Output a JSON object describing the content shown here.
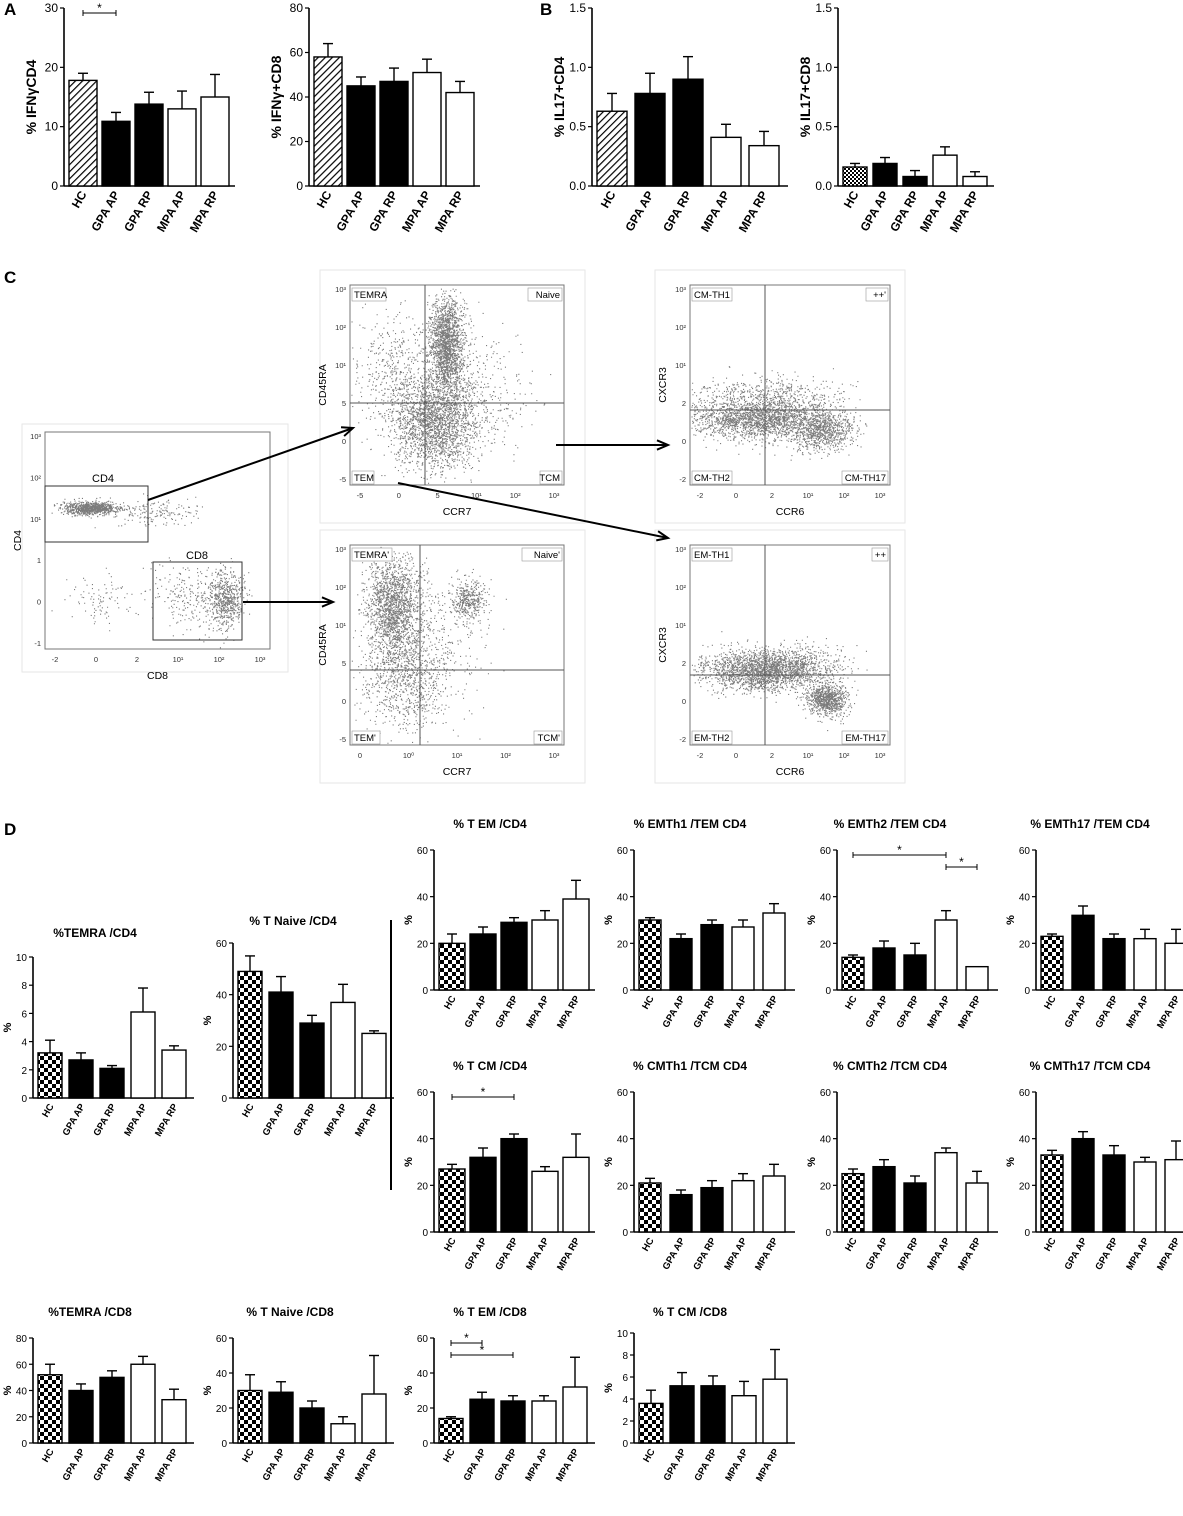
{
  "panels": {
    "A": "A",
    "B": "B",
    "C": "C",
    "D": "D"
  },
  "groups": [
    "HC",
    "GPA AP",
    "GPA RP",
    "MPA AP",
    "MPA RP"
  ],
  "chart_data": [
    {
      "type": "bar",
      "panel": "A",
      "ylabel": "% IFNγCD4",
      "ylim": [
        0,
        30
      ],
      "yticks": [
        0,
        10,
        20,
        30
      ],
      "values": [
        17.8,
        10.9,
        13.8,
        13.0,
        15.0
      ],
      "errors": [
        1.2,
        1.5,
        2.0,
        3.0,
        3.8
      ],
      "styles": [
        "hatch",
        "black",
        "black",
        "white",
        "white"
      ],
      "sig": [
        {
          "from": 0,
          "to": 1,
          "label": "*"
        }
      ]
    },
    {
      "type": "bar",
      "ylabel": "% IFNγ+CD8",
      "ylim": [
        0,
        80
      ],
      "yticks": [
        0,
        20,
        40,
        60,
        80
      ],
      "values": [
        58,
        45,
        47,
        51,
        42
      ],
      "errors": [
        6,
        4,
        6,
        6,
        5
      ],
      "styles": [
        "hatch",
        "black",
        "black",
        "white",
        "white"
      ],
      "sig": []
    },
    {
      "type": "bar",
      "panel": "B",
      "ylabel": "% IL17+CD4",
      "ylim": [
        0,
        1.5
      ],
      "yticks": [
        0.0,
        0.5,
        1.0,
        1.5
      ],
      "values": [
        0.63,
        0.78,
        0.9,
        0.41,
        0.34
      ],
      "errors": [
        0.15,
        0.17,
        0.19,
        0.11,
        0.12
      ],
      "styles": [
        "hatch",
        "black",
        "black",
        "white",
        "white"
      ],
      "sig": []
    },
    {
      "type": "bar",
      "ylabel": "% IL17+CD8",
      "ylim": [
        0,
        1.5
      ],
      "yticks": [
        0.0,
        0.5,
        1.0,
        1.5
      ],
      "values": [
        0.16,
        0.19,
        0.08,
        0.26,
        0.08
      ],
      "errors": [
        0.03,
        0.05,
        0.05,
        0.07,
        0.04
      ],
      "styles": [
        "check",
        "black",
        "black",
        "white",
        "white"
      ],
      "sig": []
    },
    {
      "type": "bar",
      "panel": "D",
      "title": "%TEMRA /CD4",
      "ylabel": "%",
      "ylim": [
        0,
        10
      ],
      "yticks": [
        0,
        2,
        4,
        6,
        8,
        10
      ],
      "values": [
        3.2,
        2.7,
        2.1,
        6.1,
        3.4
      ],
      "errors": [
        0.9,
        0.5,
        0.2,
        1.7,
        0.3
      ],
      "styles": [
        "check",
        "black",
        "black",
        "white",
        "white"
      ],
      "sig": []
    },
    {
      "type": "bar",
      "title": "% T Naive /CD4",
      "ylabel": "%",
      "ylim": [
        0,
        60
      ],
      "yticks": [
        0,
        20,
        40,
        60
      ],
      "values": [
        49,
        41,
        29,
        37,
        25
      ],
      "errors": [
        6,
        6,
        3,
        7,
        1
      ],
      "styles": [
        "check",
        "black",
        "black",
        "white",
        "white"
      ],
      "sig": []
    },
    {
      "type": "bar",
      "title": "% T EM /CD4",
      "ylabel": "%",
      "ylim": [
        0,
        60
      ],
      "yticks": [
        0,
        20,
        40,
        60
      ],
      "values": [
        20,
        24,
        29,
        30,
        39
      ],
      "errors": [
        4,
        3,
        2,
        4,
        8
      ],
      "styles": [
        "check",
        "black",
        "black",
        "white",
        "white"
      ],
      "sig": []
    },
    {
      "type": "bar",
      "title": "% EMTh1 /TEM CD4",
      "ylabel": "%",
      "ylim": [
        0,
        60
      ],
      "yticks": [
        0,
        20,
        40,
        60
      ],
      "values": [
        30,
        22,
        28,
        27,
        33
      ],
      "errors": [
        1,
        2,
        2,
        3,
        4
      ],
      "styles": [
        "check",
        "black",
        "black",
        "white",
        "white"
      ],
      "sig": []
    },
    {
      "type": "bar",
      "title": "% EMTh2 /TEM CD4",
      "ylabel": "%",
      "ylim": [
        0,
        60
      ],
      "yticks": [
        0,
        20,
        40,
        60
      ],
      "values": [
        14,
        18,
        15,
        30,
        10
      ],
      "errors": [
        1,
        3,
        5,
        4,
        0
      ],
      "styles": [
        "check",
        "black",
        "black",
        "white",
        "white"
      ],
      "sig": [
        {
          "from": 0,
          "to": 3,
          "label": "*"
        },
        {
          "from": 3,
          "to": 4,
          "label": "*"
        }
      ]
    },
    {
      "type": "bar",
      "title": "% EMTh17 /TEM CD4",
      "ylabel": "%",
      "ylim": [
        0,
        60
      ],
      "yticks": [
        0,
        20,
        40,
        60
      ],
      "values": [
        23,
        32,
        22,
        22,
        20
      ],
      "errors": [
        1,
        4,
        2,
        4,
        6
      ],
      "styles": [
        "check",
        "black",
        "black",
        "white",
        "white"
      ],
      "sig": []
    },
    {
      "type": "bar",
      "title": "% T CM /CD4",
      "ylabel": "%",
      "ylim": [
        0,
        60
      ],
      "yticks": [
        0,
        20,
        40,
        60
      ],
      "values": [
        27,
        32,
        40,
        26,
        32
      ],
      "errors": [
        2,
        4,
        2,
        2,
        10
      ],
      "styles": [
        "check",
        "black",
        "black",
        "white",
        "white"
      ],
      "sig": [
        {
          "from": 0,
          "to": 2,
          "label": "*"
        }
      ]
    },
    {
      "type": "bar",
      "title": "% CMTh1 /TCM CD4",
      "ylabel": "%",
      "ylim": [
        0,
        60
      ],
      "yticks": [
        0,
        20,
        40,
        60
      ],
      "values": [
        21,
        16,
        19,
        22,
        24
      ],
      "errors": [
        2,
        2,
        3,
        3,
        5
      ],
      "styles": [
        "check",
        "black",
        "black",
        "white",
        "white"
      ],
      "sig": []
    },
    {
      "type": "bar",
      "title": "% CMTh2 /TCM CD4",
      "ylabel": "%",
      "ylim": [
        0,
        60
      ],
      "yticks": [
        0,
        20,
        40,
        60
      ],
      "values": [
        25,
        28,
        21,
        34,
        21
      ],
      "errors": [
        2,
        3,
        3,
        2,
        5
      ],
      "styles": [
        "check",
        "black",
        "black",
        "white",
        "white"
      ],
      "sig": []
    },
    {
      "type": "bar",
      "title": "% CMTh17 /TCM CD4",
      "ylabel": "%",
      "ylim": [
        0,
        60
      ],
      "yticks": [
        0,
        20,
        40,
        60
      ],
      "values": [
        33,
        40,
        33,
        30,
        31
      ],
      "errors": [
        2,
        3,
        4,
        2,
        8
      ],
      "styles": [
        "check",
        "black",
        "black",
        "white",
        "white"
      ],
      "sig": []
    },
    {
      "type": "bar",
      "title": "%TEMRA /CD8",
      "ylabel": "%",
      "ylim": [
        0,
        80
      ],
      "yticks": [
        0,
        20,
        40,
        60,
        80
      ],
      "values": [
        52,
        40,
        50,
        60,
        33
      ],
      "errors": [
        8,
        5,
        5,
        6,
        8
      ],
      "styles": [
        "check",
        "black",
        "black",
        "white",
        "white"
      ],
      "sig": []
    },
    {
      "type": "bar",
      "title": "% T Naive /CD8",
      "ylabel": "%",
      "ylim": [
        0,
        60
      ],
      "yticks": [
        0,
        20,
        40,
        60
      ],
      "values": [
        30,
        29,
        20,
        11,
        28
      ],
      "errors": [
        9,
        6,
        4,
        4,
        22
      ],
      "styles": [
        "check",
        "black",
        "black",
        "white",
        "white"
      ],
      "sig": []
    },
    {
      "type": "bar",
      "title": "% T EM /CD8",
      "ylabel": "%",
      "ylim": [
        0,
        60
      ],
      "yticks": [
        0,
        20,
        40,
        60
      ],
      "values": [
        14,
        25,
        24,
        24,
        32
      ],
      "errors": [
        1,
        4,
        3,
        3,
        17
      ],
      "styles": [
        "check",
        "black",
        "black",
        "white",
        "white"
      ],
      "sig": [
        {
          "from": 0,
          "to": 1,
          "label": "*"
        },
        {
          "from": 0,
          "to": 2,
          "label": "*"
        }
      ]
    },
    {
      "type": "bar",
      "title": "% T CM /CD8",
      "ylabel": "%",
      "ylim": [
        0,
        10
      ],
      "yticks": [
        0,
        2,
        4,
        6,
        8,
        10
      ],
      "values": [
        3.6,
        5.2,
        5.2,
        4.3,
        5.8
      ],
      "errors": [
        1.2,
        1.2,
        0.9,
        1.3,
        2.7
      ],
      "styles": [
        "check",
        "black",
        "black",
        "white",
        "white"
      ],
      "sig": []
    }
  ],
  "flow": {
    "plots": [
      {
        "id": "f1",
        "xlabel": "CD8",
        "ylabel": "CD4",
        "xticks": [
          "-2",
          "0",
          "2",
          "10¹",
          "10²",
          "10³"
        ],
        "yticks": [
          "10³",
          "10²",
          "10¹",
          "1",
          "0",
          "-1"
        ],
        "gates": [
          "CD4",
          "CD8"
        ]
      },
      {
        "id": "f2",
        "xlabel": "CCR7",
        "ylabel": "CD45RA",
        "xticks": [
          "-5",
          "0",
          "5",
          "10¹",
          "10²",
          "10³"
        ],
        "yticks": [
          "10³",
          "10²",
          "10¹",
          "5",
          "0",
          "-5"
        ],
        "quadrants": [
          "TEMRA",
          "Naive",
          "TEM",
          "TCM"
        ]
      },
      {
        "id": "f3",
        "xlabel": "CCR7",
        "ylabel": "CD45RA",
        "xticks": [
          "0",
          "10⁰",
          "10¹",
          "10²",
          "10³"
        ],
        "yticks": [
          "10³",
          "10²",
          "10¹",
          "5",
          "0",
          "-5"
        ],
        "quadrants": [
          "TEMRA'",
          "Naive'",
          "TEM'",
          "TCM'"
        ]
      },
      {
        "id": "f4",
        "xlabel": "CCR6",
        "ylabel": "CXCR3",
        "xticks": [
          "-2",
          "0",
          "2",
          "10¹",
          "10²",
          "10³"
        ],
        "yticks": [
          "10³",
          "10²",
          "10¹",
          "2",
          "0",
          "-2"
        ],
        "quadrants": [
          "CM-TH1",
          "++'",
          "CM-TH2",
          "CM-TH17"
        ]
      },
      {
        "id": "f5",
        "xlabel": "CCR6",
        "ylabel": "CXCR3",
        "xticks": [
          "-2",
          "0",
          "2",
          "10¹",
          "10²",
          "10³"
        ],
        "yticks": [
          "10³",
          "10²",
          "10¹",
          "2",
          "0",
          "-2"
        ],
        "quadrants": [
          "EM-TH1",
          "++",
          "EM-TH2",
          "EM-TH17"
        ]
      }
    ]
  }
}
